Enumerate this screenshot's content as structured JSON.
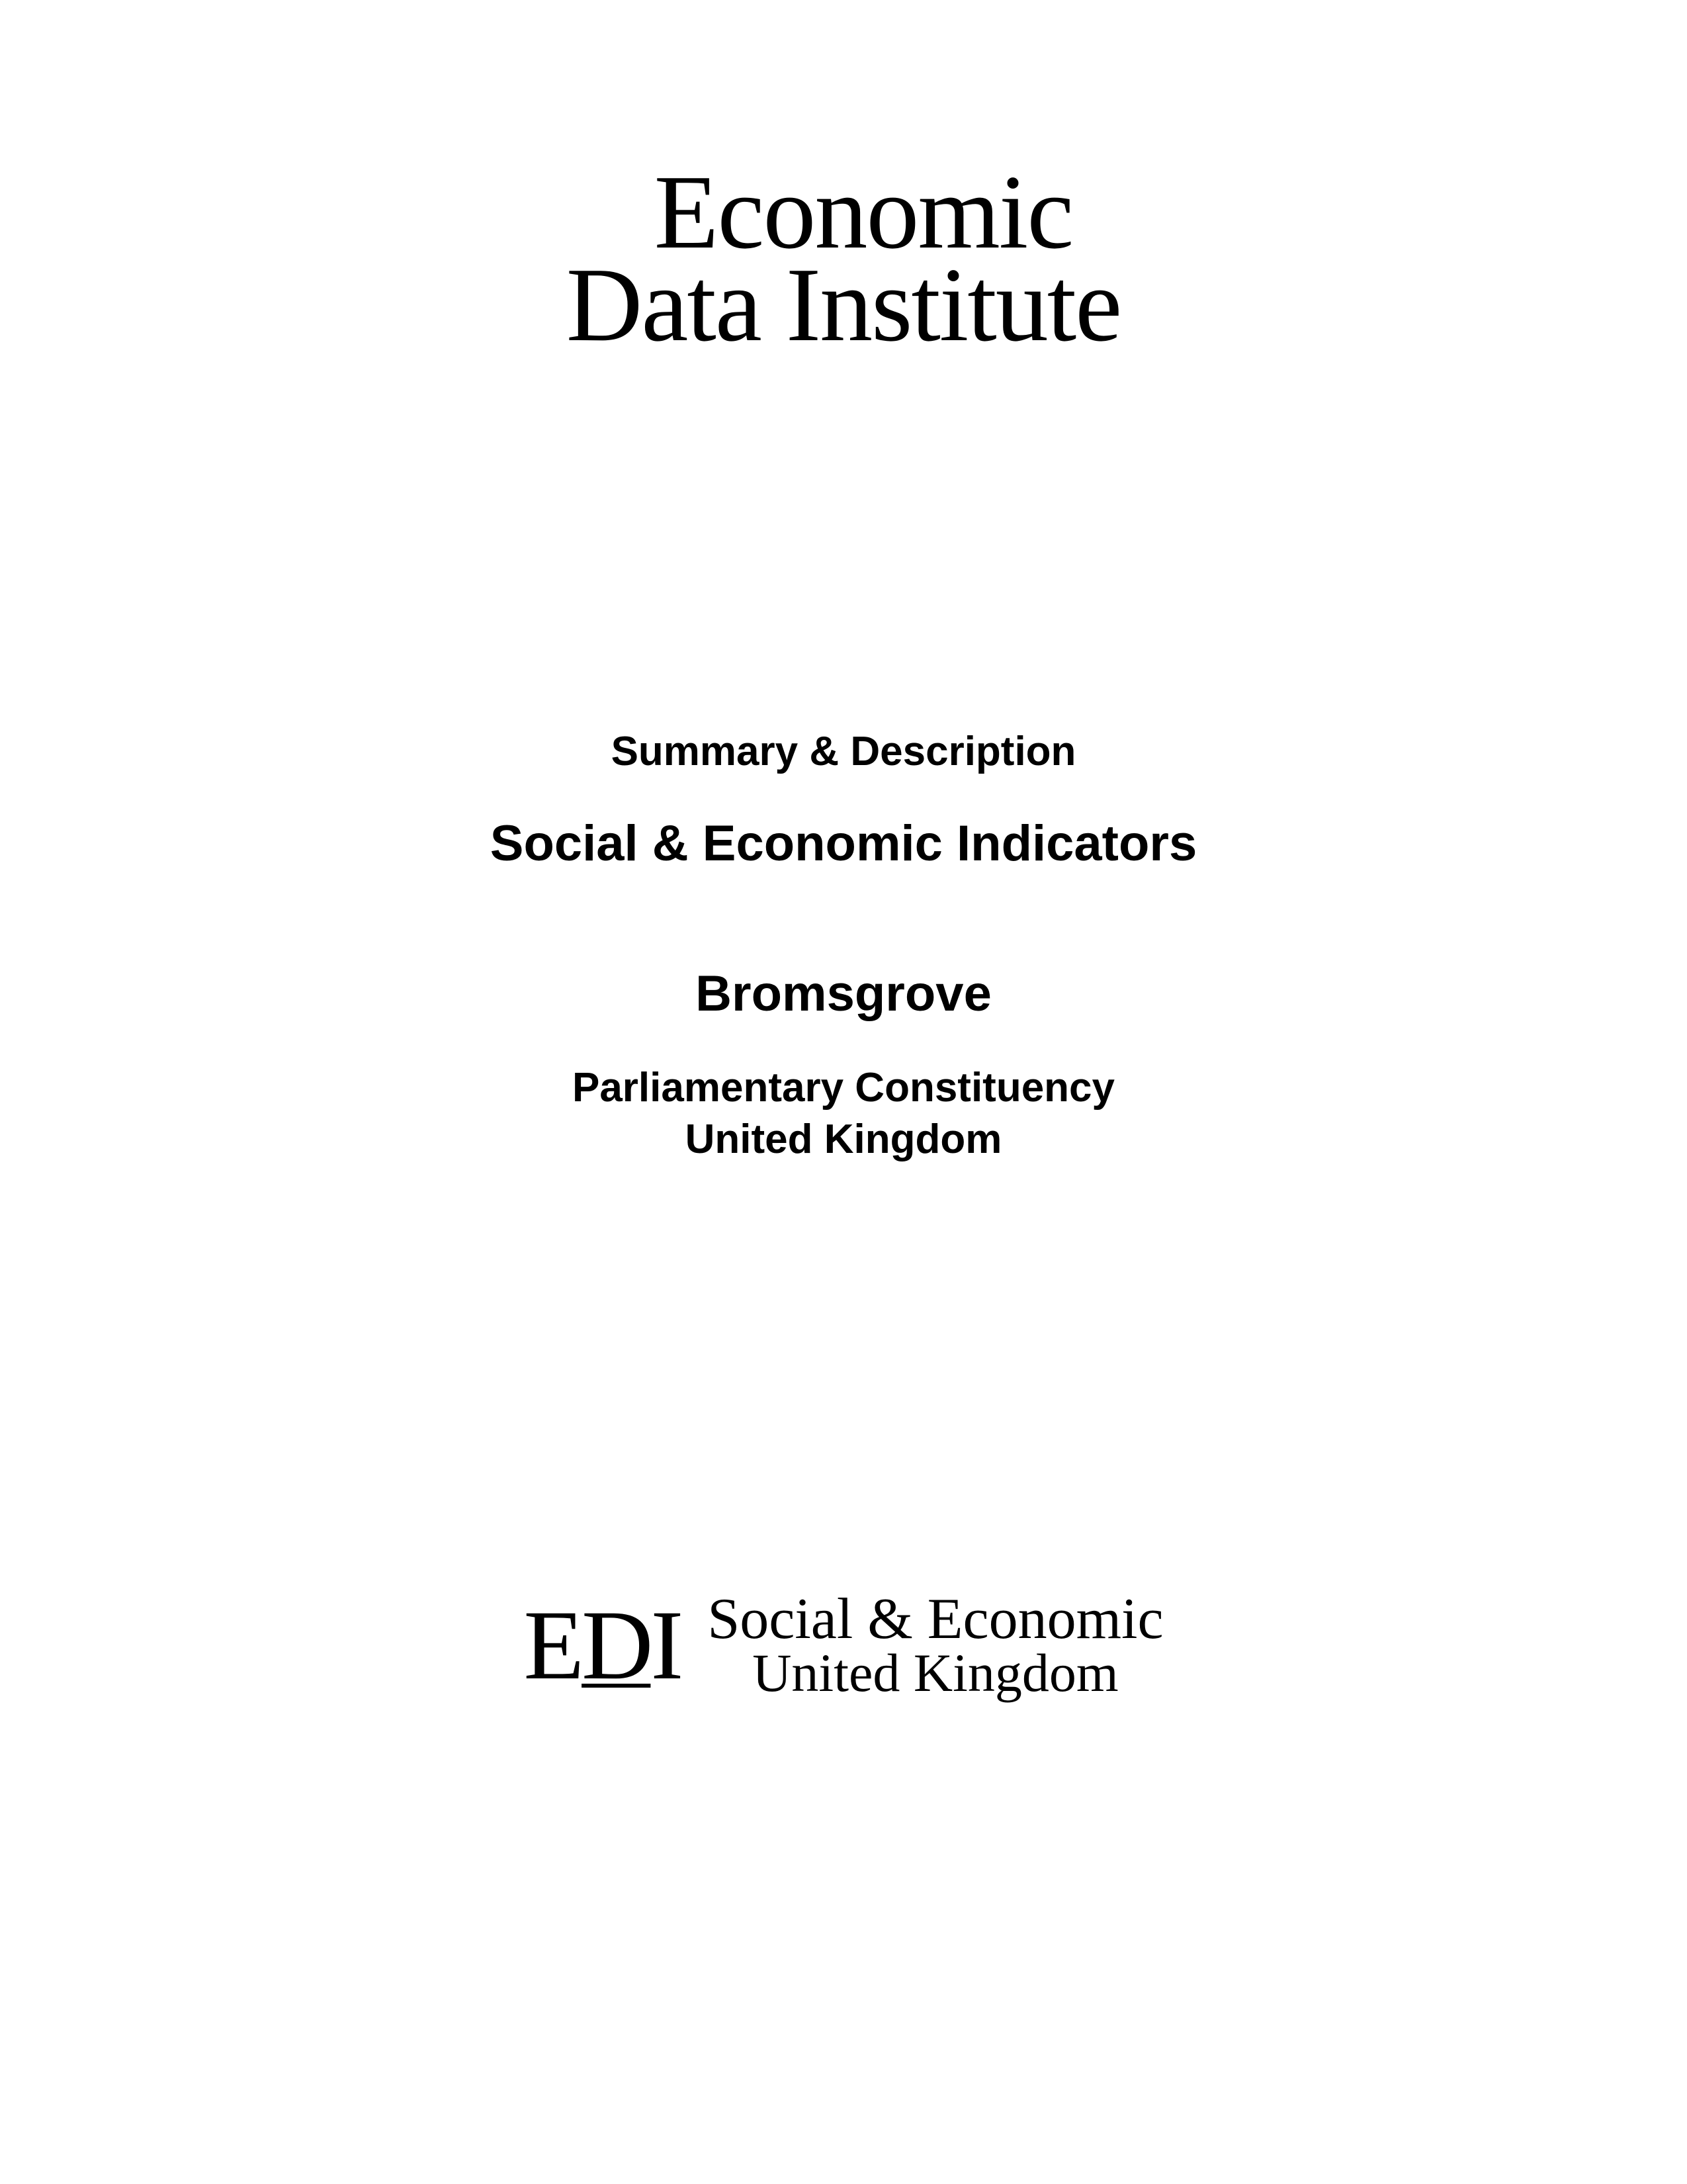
{
  "header": {
    "logo_line1": "Economic",
    "logo_line2": "Data Institute"
  },
  "content": {
    "summary_label": "Summary & Description",
    "title": "Social & Economic Indicators",
    "location": "Bromsgrove",
    "subtitle_line1": "Parliamentary Constituency",
    "subtitle_line2": "United Kingdom"
  },
  "footer": {
    "logo_abbrev_e": "E",
    "logo_abbrev_d": "D",
    "logo_abbrev_i": "I",
    "logo_line1": "Social & Economic",
    "logo_line2": "United Kingdom"
  },
  "colors": {
    "text": "#000000",
    "background": "#ffffff"
  }
}
